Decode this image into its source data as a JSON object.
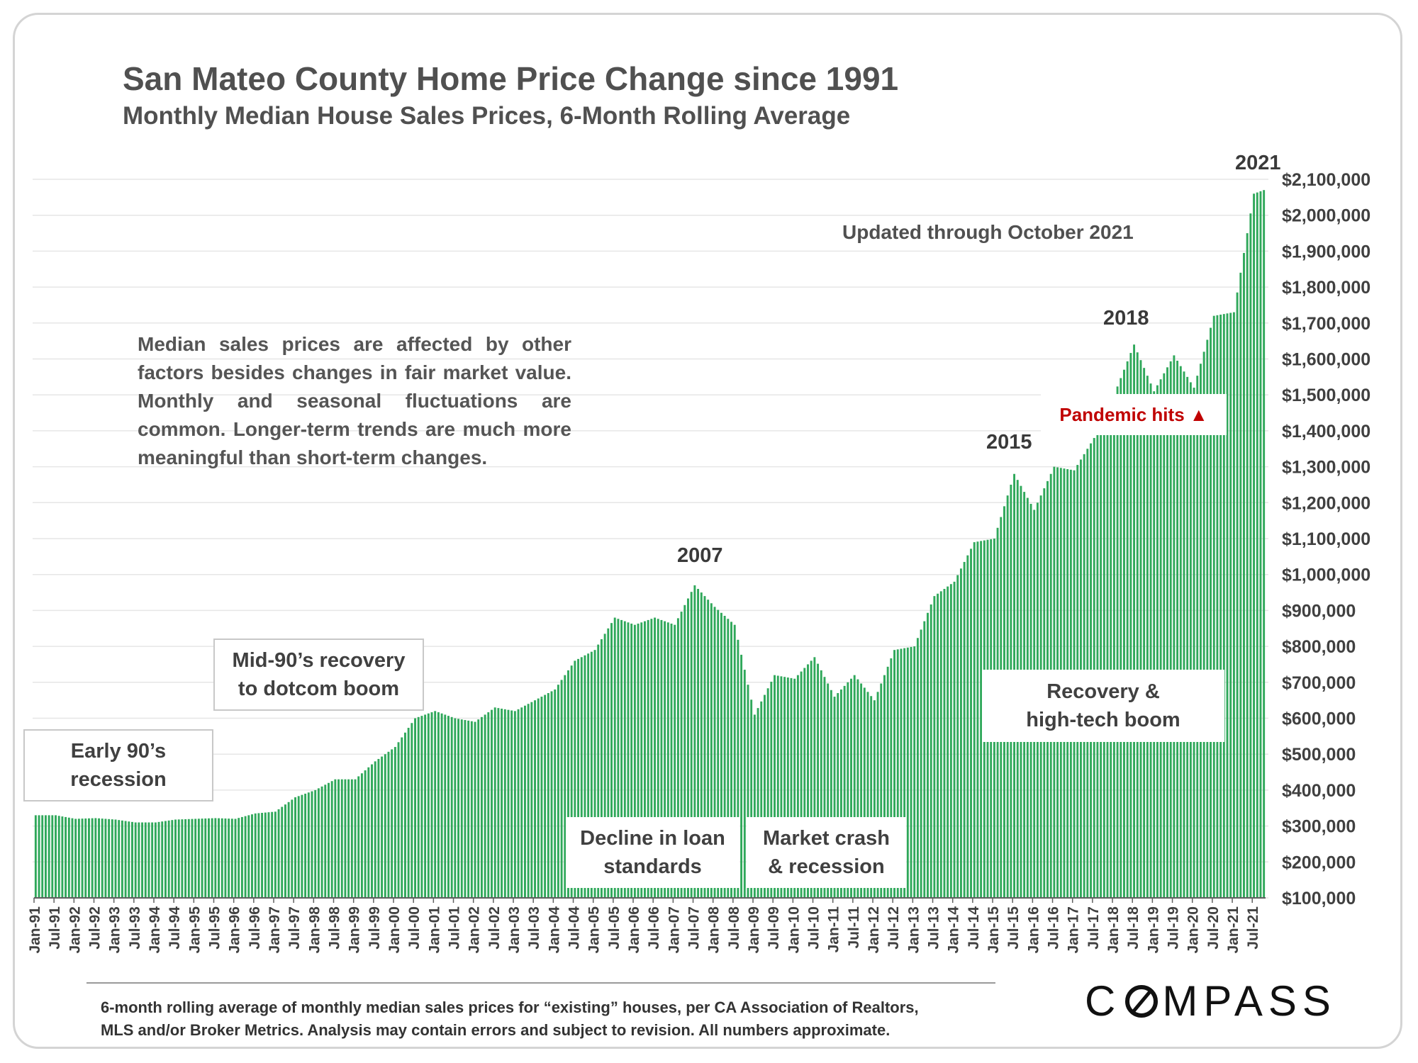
{
  "title": "San Mateo County Home Price Change since 1991",
  "subtitle": "Monthly Median House Sales Prices, 6-Month Rolling Average",
  "updated_note": "Updated through October 2021",
  "paragraph": "Median sales prices are affected by other factors besides changes in fair market value. Monthly and seasonal fluctuations are common. Longer-term trends are much more meaningful than short-term changes.",
  "annotations": {
    "early90s": "Early 90’s\nrecession",
    "mid90s": "Mid-90’s recovery\nto dotcom boom",
    "decline": "Decline in loan\nstandards",
    "crash": "Market crash\n& recession",
    "recovery": "Recovery &\nhigh-tech boom",
    "pandemic": "Pandemic hits ▲",
    "peak2007": "2007",
    "peak2015": "2015",
    "peak2018": "2018",
    "peak2021": "2021"
  },
  "footer": {
    "line1": "6-month rolling average of monthly median sales prices for “existing” houses, per CA Association of Realtors,",
    "line2": "MLS and/or Broker Metrics.  Analysis may contain errors and subject to revision. All numbers approximate."
  },
  "logo": {
    "pre": "C",
    "post": "MPASS",
    "icon": "compass-o-icon"
  },
  "colors": {
    "bar": "#2fa85a",
    "grid": "#e6e6e6",
    "axis": "#606060",
    "accent_red": "#c00000"
  },
  "chart_data": {
    "type": "bar",
    "ylabel": "",
    "xlabel": "",
    "ylim": [
      100000,
      2100000
    ],
    "yticks": [
      100000,
      200000,
      300000,
      400000,
      500000,
      600000,
      700000,
      800000,
      900000,
      1000000,
      1100000,
      1200000,
      1300000,
      1400000,
      1500000,
      1600000,
      1700000,
      1800000,
      1900000,
      2000000,
      2100000
    ],
    "ytick_labels": [
      "$100,000",
      "$200,000",
      "$300,000",
      "$400,000",
      "$500,000",
      "$600,000",
      "$700,000",
      "$800,000",
      "$900,000",
      "$1,000,000",
      "$1,100,000",
      "$1,200,000",
      "$1,300,000",
      "$1,400,000",
      "$1,500,000",
      "$1,600,000",
      "$1,700,000",
      "$1,800,000",
      "$1,900,000",
      "$2,000,000",
      "$2,100,000"
    ],
    "x_start": "Jan-91",
    "x_end": "Oct-21",
    "xtick_labels": [
      "Jan-91",
      "Jul-91",
      "Jan-92",
      "Jul-92",
      "Jan-93",
      "Jul-93",
      "Jan-94",
      "Jul-94",
      "Jan-95",
      "Jul-95",
      "Jan-96",
      "Jul-96",
      "Jan-97",
      "Jul-97",
      "Jan-98",
      "Jul-98",
      "Jan-99",
      "Jul-99",
      "Jan-00",
      "Jul-00",
      "Jan-01",
      "Jul-01",
      "Jan-02",
      "Jul-02",
      "Jan-03",
      "Jul-03",
      "Jan-04",
      "Jul-04",
      "Jan-05",
      "Jul-05",
      "Jan-06",
      "Jul-06",
      "Jan-07",
      "Jul-07",
      "Jan-08",
      "Jul-08",
      "Jan-09",
      "Jul-09",
      "Jan-10",
      "Jul-10",
      "Jan-11",
      "Jul-11",
      "Jan-12",
      "Jul-12",
      "Jan-13",
      "Jul-13",
      "Jan-14",
      "Jul-14",
      "Jan-15",
      "Jul-15",
      "Jan-16",
      "Jul-16",
      "Jan-17",
      "Jul-17",
      "Jan-18",
      "Jul-18",
      "Jan-19",
      "Jul-19",
      "Jan-20",
      "Jul-20",
      "Jan-21",
      "Jul-21"
    ],
    "anchor_values": [
      [
        "Jan-91",
        330000
      ],
      [
        "Jul-91",
        330000
      ],
      [
        "Jan-92",
        320000
      ],
      [
        "Jul-92",
        322000
      ],
      [
        "Jan-93",
        318000
      ],
      [
        "Jul-93",
        310000
      ],
      [
        "Jan-94",
        310000
      ],
      [
        "Jul-94",
        318000
      ],
      [
        "Jan-95",
        320000
      ],
      [
        "Jul-95",
        322000
      ],
      [
        "Jan-96",
        320000
      ],
      [
        "Jul-96",
        335000
      ],
      [
        "Jan-97",
        340000
      ],
      [
        "Jul-97",
        380000
      ],
      [
        "Jan-98",
        400000
      ],
      [
        "Jul-98",
        430000
      ],
      [
        "Jan-99",
        430000
      ],
      [
        "Jul-99",
        480000
      ],
      [
        "Jan-00",
        520000
      ],
      [
        "Jul-00",
        600000
      ],
      [
        "Jan-01",
        620000
      ],
      [
        "Jul-01",
        600000
      ],
      [
        "Jan-02",
        590000
      ],
      [
        "Jul-02",
        630000
      ],
      [
        "Jan-03",
        620000
      ],
      [
        "Jul-03",
        650000
      ],
      [
        "Jan-04",
        680000
      ],
      [
        "Jul-04",
        760000
      ],
      [
        "Jan-05",
        790000
      ],
      [
        "Jul-05",
        880000
      ],
      [
        "Jan-06",
        860000
      ],
      [
        "Jul-06",
        880000
      ],
      [
        "Jan-07",
        860000
      ],
      [
        "Jul-07",
        970000
      ],
      [
        "Jan-08",
        910000
      ],
      [
        "Jul-08",
        860000
      ],
      [
        "Jan-09",
        610000
      ],
      [
        "Jul-09",
        720000
      ],
      [
        "Jan-10",
        710000
      ],
      [
        "Jul-10",
        770000
      ],
      [
        "Jan-11",
        660000
      ],
      [
        "Jul-11",
        720000
      ],
      [
        "Jan-12",
        650000
      ],
      [
        "Jul-12",
        790000
      ],
      [
        "Jan-13",
        800000
      ],
      [
        "Jul-13",
        940000
      ],
      [
        "Jan-14",
        980000
      ],
      [
        "Jul-14",
        1090000
      ],
      [
        "Jan-15",
        1100000
      ],
      [
        "Jul-15",
        1280000
      ],
      [
        "Jan-16",
        1180000
      ],
      [
        "Jul-16",
        1300000
      ],
      [
        "Jan-17",
        1290000
      ],
      [
        "Jul-17",
        1380000
      ],
      [
        "Jan-18",
        1500000
      ],
      [
        "Jul-18",
        1640000
      ],
      [
        "Jan-19",
        1510000
      ],
      [
        "Jul-19",
        1610000
      ],
      [
        "Jan-20",
        1520000
      ],
      [
        "Jul-20",
        1720000
      ],
      [
        "Jan-21",
        1730000
      ],
      [
        "Jul-21",
        2060000
      ],
      [
        "Oct-21",
        2070000
      ]
    ]
  }
}
